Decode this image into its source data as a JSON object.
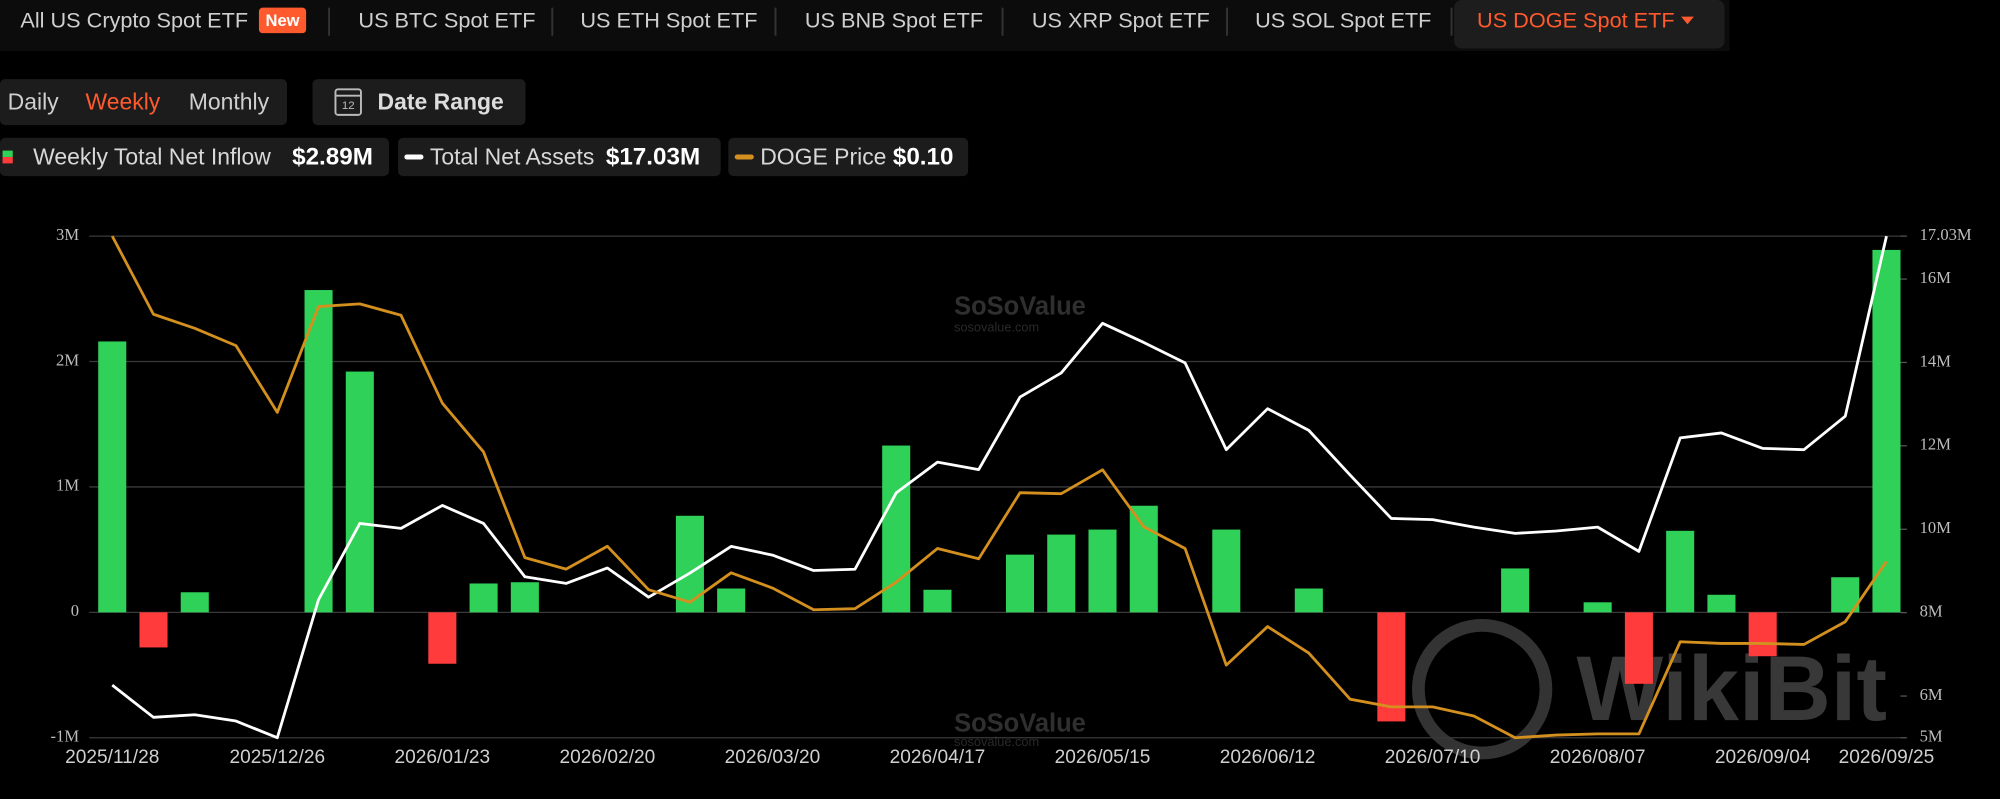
{
  "tabs": [
    "All US Crypto Spot ETF",
    "US BTC Spot ETF",
    "US ETH Spot ETF",
    "US BNB Spot ETF",
    "US XRP Spot ETF",
    "US SOL Spot ETF",
    "US DOGE Spot ETF"
  ],
  "new_badge": "New",
  "periods": [
    "Daily",
    "Weekly",
    "Monthly"
  ],
  "date_range": "Date Range",
  "calendar_icon": "12",
  "watermarks": [
    "SoSoValue",
    "sosovalue.com",
    "WikiBit"
  ],
  "chart_data": {
    "type": "bar-line",
    "categories": [
      "2025/11/28",
      null,
      null,
      null,
      "2025/12/26",
      null,
      null,
      null,
      "2026/01/23",
      null,
      null,
      null,
      "2026/02/20",
      null,
      null,
      null,
      "2026/03/20",
      null,
      null,
      null,
      "2026/04/17",
      null,
      null,
      null,
      "2026/05/15",
      null,
      null,
      null,
      "2026/06/12",
      null,
      null,
      null,
      "2026/07/10",
      null,
      null,
      null,
      "2026/08/07",
      null,
      null,
      null,
      "2026/09/04",
      null,
      null,
      "2026/09/25"
    ],
    "ylim": [
      -1000000,
      3000000
    ],
    "yticks": [
      {
        "value": -1000000,
        "label": "-1M"
      },
      0,
      {
        "value": 1000000,
        "label": "1M"
      },
      {
        "value": 2000000,
        "label": "2M"
      },
      {
        "value": 3000000,
        "label": "3M"
      }
    ],
    "y2lim": [
      5000000,
      17030000
    ],
    "y2ticks": [
      {
        "value": 5000000,
        "label": "5M"
      },
      {
        "value": 6000000,
        "label": "6M"
      },
      {
        "value": 8000000,
        "label": "8M"
      },
      {
        "value": 10000000,
        "label": "10M"
      },
      {
        "value": 12000000,
        "label": "12M"
      },
      {
        "value": 14000000,
        "label": "14M"
      },
      {
        "value": 16000000,
        "label": "16M"
      },
      {
        "value": 17030000,
        "label": "17.03M"
      }
    ],
    "grid": true,
    "series": [
      {
        "name": "Weekly Total Net Inflow",
        "type": "bar",
        "color": "#2fd158",
        "negative_color": "#ff3b3b",
        "legend_value": "$2.89M",
        "values": [
          2160000,
          -280000,
          160000,
          0,
          0,
          2570000,
          1920000,
          0,
          -410000,
          230000,
          240000,
          0,
          0,
          0,
          770000,
          190000,
          0,
          0,
          0,
          1330000,
          180000,
          0,
          460000,
          620000,
          660000,
          850000,
          0,
          660000,
          0,
          190000,
          0,
          -870000,
          0,
          0,
          350000,
          0,
          80000,
          -570000,
          650000,
          140000,
          -350000,
          0,
          280000,
          2890000
        ]
      },
      {
        "name": "Total Net Assets",
        "type": "line",
        "axis": "y2",
        "color": "#ffffff",
        "legend_value": "$17.03M",
        "values": [
          6260000,
          5490000,
          5550000,
          5400000,
          5000000,
          8310000,
          10140000,
          10020000,
          10570000,
          10140000,
          8860000,
          8700000,
          9070000,
          8370000,
          8950000,
          9590000,
          9380000,
          9010000,
          9040000,
          10870000,
          11610000,
          11430000,
          13170000,
          13750000,
          14940000,
          14480000,
          13990000,
          11910000,
          12890000,
          12370000,
          11300000,
          10260000,
          10230000,
          10050000,
          9900000,
          9960000,
          10050000,
          9470000,
          12190000,
          12310000,
          11940000,
          11910000,
          12710000,
          17030000
        ]
      },
      {
        "name": "DOGE Price",
        "type": "line",
        "axis": "none",
        "color": "#d4901e",
        "legend_value": "$0.10",
        "values": [
          0.16,
          0.1456,
          0.143,
          0.1398,
          0.1275,
          0.147,
          0.1475,
          0.1454,
          0.1292,
          0.1202,
          0.1007,
          0.0986,
          0.1028,
          0.0948,
          0.0925,
          0.0979,
          0.0951,
          0.0911,
          0.0913,
          0.0962,
          0.1024,
          0.1005,
          0.1127,
          0.1125,
          0.1169,
          0.1064,
          0.1024,
          0.0809,
          0.088,
          0.0831,
          0.0746,
          0.0732,
          0.0732,
          0.0715,
          0.0675,
          0.068,
          0.0682,
          0.0682,
          0.0852,
          0.0849,
          0.0849,
          0.0847,
          0.0889,
          0.1
        ]
      }
    ]
  }
}
